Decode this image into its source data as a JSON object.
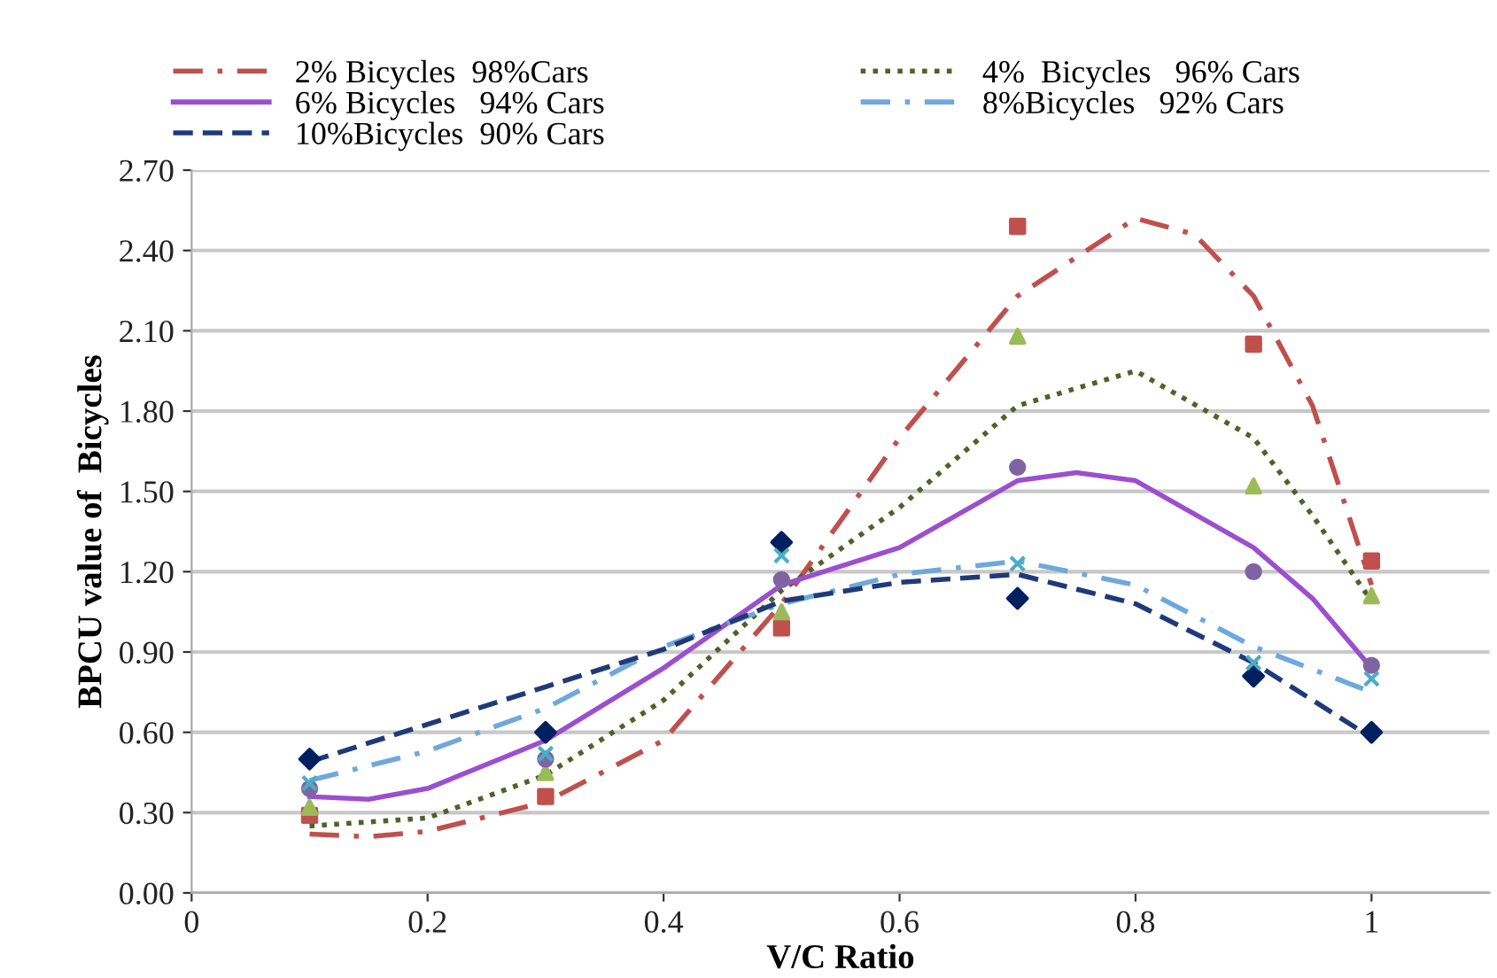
{
  "chart_data": {
    "type": "scatter",
    "xlabel": "V/C Ratio",
    "ylabel": "BPCU value of  Bicycles",
    "xlim": [
      0,
      1.1
    ],
    "xticks": [
      0,
      0.2,
      0.4,
      0.6,
      0.8,
      1
    ],
    "ylim": [
      0,
      2.7
    ],
    "yticks": [
      {
        "value": 0,
        "label": "0.00"
      },
      {
        "value": 0.3,
        "label": "0.30"
      },
      {
        "value": 0.6,
        "label": "0.60"
      },
      {
        "value": 0.9,
        "label": "0.90"
      },
      {
        "value": 1.2,
        "label": "1.20"
      },
      {
        "value": 1.5,
        "label": "1.50"
      },
      {
        "value": 1.8,
        "label": "1.80"
      },
      {
        "value": 2.1,
        "label": "2.10"
      },
      {
        "value": 2.4,
        "label": "2.40"
      },
      {
        "value": 2.7,
        "label": "2.70"
      }
    ],
    "grid": "y",
    "legend": "top",
    "series": [
      {
        "marker": "diamond",
        "color": "#002060",
        "x": [
          0.1,
          0.3,
          0.5,
          0.7,
          0.9,
          1.0
        ],
        "values": [
          0.5,
          0.6,
          1.31,
          1.1,
          0.81,
          0.6
        ]
      },
      {
        "marker": "square",
        "color": "#c0504d",
        "x": [
          0.1,
          0.3,
          0.5,
          0.7,
          0.9,
          1.0
        ],
        "values": [
          0.29,
          0.36,
          0.99,
          2.49,
          2.05,
          1.24
        ]
      },
      {
        "marker": "triangle",
        "color": "#9bbb59",
        "x": [
          0.1,
          0.3,
          0.5,
          0.7,
          0.9,
          1.0
        ],
        "values": [
          0.32,
          0.45,
          1.05,
          2.08,
          1.52,
          1.11
        ]
      },
      {
        "marker": "circle",
        "color": "#8064a2",
        "x": [
          0.1,
          0.3,
          0.5,
          0.7,
          0.9,
          1.0
        ],
        "values": [
          0.39,
          0.5,
          1.17,
          1.59,
          1.2,
          0.85
        ]
      },
      {
        "marker": "cross",
        "color": "#4bacc6",
        "x": [
          0.1,
          0.3,
          0.5,
          0.7,
          0.9,
          1.0
        ],
        "values": [
          0.41,
          0.52,
          1.26,
          1.23,
          0.86,
          0.8
        ]
      },
      {
        "type": "line",
        "name": "2% Bicycles  98%Cars",
        "color": "#c0504d",
        "line_style": "dashdot",
        "x": [
          0.1,
          0.15,
          0.2,
          0.3,
          0.4,
          0.5,
          0.6,
          0.7,
          0.8,
          0.85,
          0.9,
          0.95,
          1.0
        ],
        "values": [
          0.22,
          0.21,
          0.23,
          0.34,
          0.57,
          1.08,
          1.7,
          2.23,
          2.52,
          2.46,
          2.23,
          1.82,
          1.15
        ]
      },
      {
        "type": "line",
        "name": "4%  Bicycles   96% Cars",
        "color": "#4f6228",
        "line_style": "dotted",
        "x": [
          0.1,
          0.2,
          0.3,
          0.4,
          0.5,
          0.6,
          0.7,
          0.8,
          0.9,
          0.95,
          1.0
        ],
        "values": [
          0.25,
          0.28,
          0.44,
          0.72,
          1.13,
          1.44,
          1.82,
          1.95,
          1.7,
          1.41,
          1.09
        ]
      },
      {
        "type": "line",
        "name": "6% Bicycles   94% Cars",
        "color": "#9b4fd0",
        "line_style": "solid",
        "x": [
          0.1,
          0.15,
          0.2,
          0.3,
          0.4,
          0.5,
          0.6,
          0.7,
          0.75,
          0.8,
          0.9,
          0.95,
          1.0
        ],
        "values": [
          0.36,
          0.35,
          0.39,
          0.57,
          0.84,
          1.15,
          1.29,
          1.54,
          1.57,
          1.54,
          1.29,
          1.1,
          0.84
        ]
      },
      {
        "type": "line",
        "name": "8%Bicycles   92% Cars",
        "color": "#6fa8dc",
        "line_style": "dashdot",
        "x": [
          0.1,
          0.2,
          0.3,
          0.4,
          0.5,
          0.6,
          0.7,
          0.8,
          0.9,
          1.0
        ],
        "values": [
          0.42,
          0.53,
          0.69,
          0.92,
          1.08,
          1.19,
          1.24,
          1.15,
          0.92,
          0.75
        ]
      },
      {
        "type": "line",
        "name": "10%Bicycles  90% Cars",
        "color": "#1f3a7a",
        "line_style": "dashed",
        "x": [
          0.1,
          0.2,
          0.3,
          0.4,
          0.5,
          0.6,
          0.7,
          0.8,
          0.9,
          1.0
        ],
        "values": [
          0.49,
          0.63,
          0.77,
          0.91,
          1.09,
          1.16,
          1.19,
          1.08,
          0.86,
          0.58
        ]
      }
    ]
  }
}
